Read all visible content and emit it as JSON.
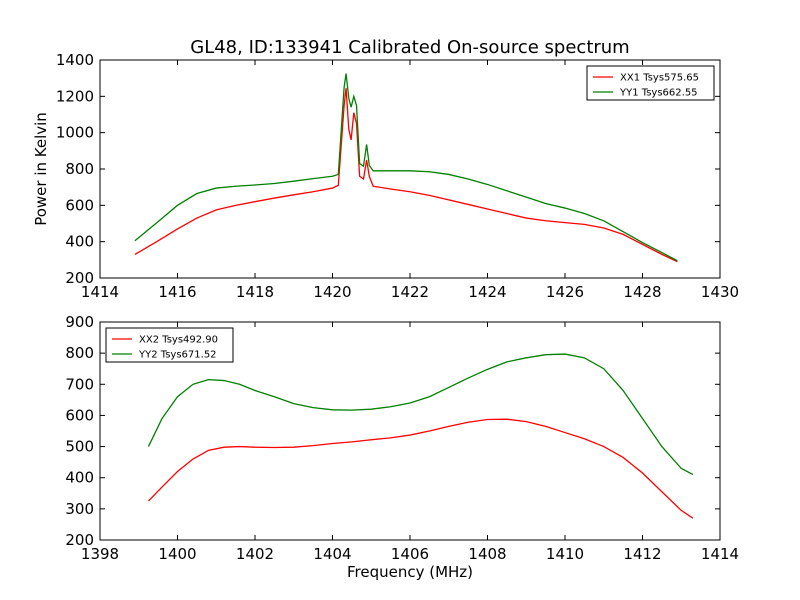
{
  "title": "GL48, ID:133941 Calibrated On-source spectrum",
  "chart_data": [
    {
      "type": "line",
      "xlim": [
        1414,
        1430
      ],
      "ylim": [
        200,
        1400
      ],
      "xticks": [
        "1414",
        "1416",
        "1418",
        "1420",
        "1422",
        "1424",
        "1426",
        "1428",
        "1430"
      ],
      "yticks": [
        "200",
        "400",
        "600",
        "800",
        "1000",
        "1200",
        "1400"
      ],
      "ylabel": "Power in Kelvin",
      "xlabel": "",
      "legend_position": "top-right",
      "series": [
        {
          "name": "XX1 Tsys575.65",
          "color": "#ff0000",
          "x": [
            1414.9,
            1415.5,
            1416.0,
            1416.5,
            1417.0,
            1417.5,
            1418.0,
            1418.5,
            1419.0,
            1419.5,
            1420.0,
            1420.15,
            1420.3,
            1420.35,
            1420.42,
            1420.48,
            1420.55,
            1420.62,
            1420.7,
            1420.8,
            1420.88,
            1420.95,
            1421.05,
            1421.2,
            1421.5,
            1422.0,
            1422.5,
            1423.0,
            1423.5,
            1424.0,
            1424.5,
            1425.0,
            1425.5,
            1426.0,
            1426.5,
            1427.0,
            1427.5,
            1428.0,
            1428.5,
            1428.9
          ],
          "y": [
            330,
            405,
            470,
            530,
            575,
            600,
            620,
            640,
            658,
            675,
            695,
            710,
            1150,
            1245,
            1020,
            960,
            1110,
            1050,
            760,
            745,
            850,
            760,
            705,
            700,
            690,
            675,
            655,
            630,
            605,
            580,
            555,
            530,
            515,
            505,
            495,
            475,
            440,
            385,
            330,
            290
          ]
        },
        {
          "name": "YY1 Tsys662.55",
          "color": "#008000",
          "x": [
            1414.9,
            1415.5,
            1416.0,
            1416.5,
            1417.0,
            1417.5,
            1418.0,
            1418.5,
            1419.0,
            1419.5,
            1420.0,
            1420.15,
            1420.3,
            1420.35,
            1420.42,
            1420.48,
            1420.55,
            1420.62,
            1420.7,
            1420.8,
            1420.88,
            1420.95,
            1421.05,
            1421.2,
            1421.5,
            1422.0,
            1422.5,
            1423.0,
            1423.5,
            1424.0,
            1424.5,
            1425.0,
            1425.5,
            1426.0,
            1426.5,
            1427.0,
            1427.5,
            1428.0,
            1428.5,
            1428.9
          ],
          "y": [
            405,
            510,
            600,
            665,
            695,
            705,
            712,
            720,
            733,
            747,
            760,
            770,
            1250,
            1325,
            1190,
            1140,
            1200,
            1150,
            830,
            815,
            935,
            820,
            790,
            790,
            790,
            790,
            785,
            770,
            745,
            715,
            680,
            645,
            610,
            585,
            555,
            515,
            455,
            395,
            340,
            295
          ]
        }
      ]
    },
    {
      "type": "line",
      "xlim": [
        1398,
        1414
      ],
      "ylim": [
        200,
        900
      ],
      "xticks": [
        "1398",
        "1400",
        "1402",
        "1404",
        "1406",
        "1408",
        "1410",
        "1412",
        "1414"
      ],
      "yticks": [
        "200",
        "300",
        "400",
        "500",
        "600",
        "700",
        "800",
        "900"
      ],
      "ylabel": "",
      "xlabel": "Frequency (MHz)",
      "legend_position": "top-left",
      "series": [
        {
          "name": "XX2 Tsys492.90",
          "color": "#ff0000",
          "x": [
            1399.25,
            1399.6,
            1400.0,
            1400.4,
            1400.8,
            1401.2,
            1401.6,
            1402.0,
            1402.5,
            1403.0,
            1403.5,
            1404.0,
            1404.5,
            1405.0,
            1405.5,
            1406.0,
            1406.5,
            1407.0,
            1407.5,
            1408.0,
            1408.5,
            1409.0,
            1409.5,
            1410.0,
            1410.5,
            1411.0,
            1411.5,
            1412.0,
            1412.5,
            1413.0,
            1413.3
          ],
          "y": [
            325,
            370,
            420,
            460,
            488,
            498,
            500,
            498,
            497,
            498,
            503,
            510,
            515,
            522,
            528,
            537,
            550,
            565,
            578,
            587,
            588,
            580,
            565,
            545,
            525,
            500,
            465,
            415,
            355,
            295,
            270
          ]
        },
        {
          "name": "YY2 Tsys671.52",
          "color": "#008000",
          "x": [
            1399.25,
            1399.6,
            1400.0,
            1400.4,
            1400.8,
            1401.2,
            1401.6,
            1402.0,
            1402.5,
            1403.0,
            1403.5,
            1404.0,
            1404.5,
            1405.0,
            1405.5,
            1406.0,
            1406.5,
            1407.0,
            1407.5,
            1408.0,
            1408.5,
            1409.0,
            1409.5,
            1410.0,
            1410.5,
            1411.0,
            1411.5,
            1412.0,
            1412.5,
            1413.0,
            1413.3
          ],
          "y": [
            500,
            590,
            660,
            700,
            715,
            712,
            700,
            680,
            660,
            638,
            625,
            618,
            617,
            620,
            628,
            640,
            660,
            690,
            720,
            748,
            772,
            785,
            795,
            797,
            785,
            750,
            680,
            590,
            500,
            430,
            410
          ]
        }
      ]
    }
  ]
}
